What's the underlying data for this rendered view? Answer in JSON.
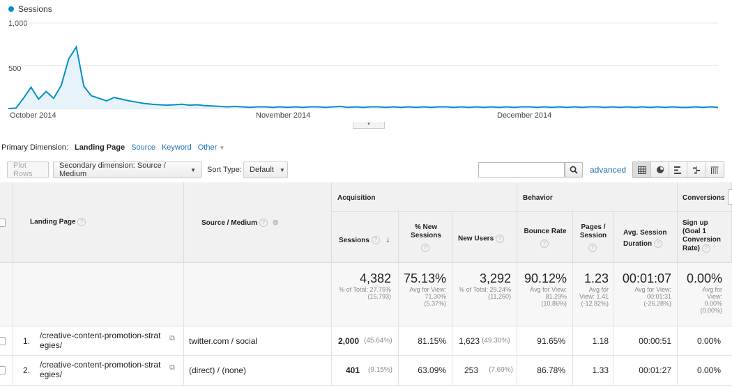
{
  "chart": {
    "legend": "Sessions",
    "color": "#058dc7",
    "y_ticks": [
      "1,000",
      "500"
    ],
    "x_labels": [
      "October 2014",
      "November 2014",
      "December 2014"
    ]
  },
  "chart_data": {
    "type": "area",
    "series": [
      {
        "name": "Sessions",
        "values": [
          0,
          5,
          120,
          250,
          110,
          200,
          120,
          270,
          580,
          720,
          260,
          150,
          120,
          90,
          130,
          110,
          90,
          75,
          60,
          50,
          45,
          40,
          45,
          50,
          40,
          45,
          35,
          30,
          25,
          20,
          25,
          20,
          15,
          20,
          20,
          15,
          20,
          15,
          20,
          15,
          20,
          20,
          15,
          20,
          25,
          15,
          20,
          15,
          20,
          20,
          15,
          20,
          15,
          20,
          15,
          20,
          15,
          20,
          20,
          15,
          20,
          15,
          20,
          15,
          20,
          15,
          20,
          15,
          20,
          20,
          15,
          20,
          15,
          20,
          15,
          20,
          15,
          20,
          20,
          15,
          20,
          15,
          20,
          15,
          20,
          15,
          20,
          15,
          20,
          15,
          15,
          20,
          15,
          20,
          15
        ]
      }
    ],
    "ylim": [
      0,
      1000
    ],
    "x_labels": [
      "October 2014",
      "November 2014",
      "December 2014"
    ]
  },
  "primary_dimension": {
    "label": "Primary Dimension:",
    "active": "Landing Page",
    "links": [
      "Source",
      "Keyword",
      "Other"
    ]
  },
  "toolbar": {
    "plot_rows": "Plot Rows",
    "secondary": "Secondary dimension: Source / Medium",
    "sort_label": "Sort Type:",
    "sort_value": "Default",
    "advanced": "advanced"
  },
  "table": {
    "col_landing": "Landing Page",
    "col_source": "Source / Medium",
    "group_acquisition": "Acquisition",
    "group_behavior": "Behavior",
    "group_conversions": "Conversions",
    "col_sessions": "Sessions",
    "col_new_sessions": "% New Sessions",
    "col_new_users": "New Users",
    "col_bounce": "Bounce Rate",
    "col_pages": "Pages / Session",
    "col_duration": "Avg. Session Duration",
    "col_signup": "Sign up (Goal 1 Conversion Rate)",
    "totals": {
      "sessions": "4,382",
      "sessions_sub": "% of Total: 27.75% (15,793)",
      "new_sessions": "75.13%",
      "new_sessions_sub": "Avg for View: 71.30% (5.37%)",
      "new_users": "3,292",
      "new_users_sub": "% of Total: 29.24% (11,260)",
      "bounce": "90.12%",
      "bounce_sub": "Avg for View: 81.29% (10.86%)",
      "pages": "1.23",
      "pages_sub": "Avg for View: 1.41 (-12.82%)",
      "duration": "00:01:07",
      "duration_sub": "Avg for View: 00:01:31 (-26.28%)",
      "signup": "0.00%",
      "signup_sub": "Avg for View: 0.00% (0.00%)"
    },
    "rows": [
      {
        "num": "1.",
        "page_line1": "/creative-content-promotion-strat",
        "page_line2": "egies/",
        "source": "twitter.com / social",
        "sessions": "2,000",
        "sessions_pct": "(45.64%)",
        "new_sessions": "81.15%",
        "new_users": "1,623",
        "new_users_pct": "(49.30%)",
        "bounce": "91.65%",
        "pages": "1.18",
        "duration": "00:00:51",
        "signup": "0.00%"
      },
      {
        "num": "2.",
        "page_line1": "/creative-content-promotion-strat",
        "page_line2": "egies/",
        "source": "(direct) / (none)",
        "sessions": "401",
        "sessions_pct": "(9.15%)",
        "new_sessions": "63.09%",
        "new_users": "253",
        "new_users_pct": "(7.69%)",
        "bounce": "86.78%",
        "pages": "1.33",
        "duration": "00:01:27",
        "signup": "0.00%"
      }
    ]
  }
}
